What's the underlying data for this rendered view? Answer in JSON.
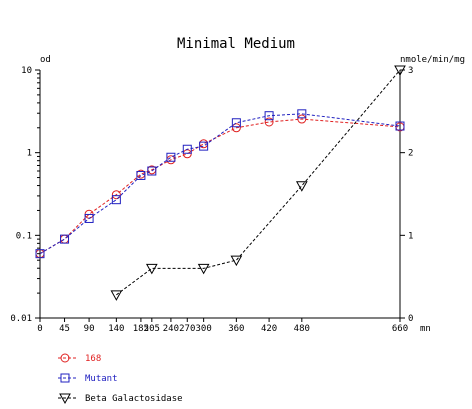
{
  "chart_data": {
    "type": "line",
    "title": "Minimal Medium",
    "xlabel": "mn",
    "ylabel_left": "od",
    "ylabel_right": "nmole/min/mg",
    "x_ticks": [
      0,
      45,
      90,
      140,
      185,
      205,
      240,
      270,
      300,
      360,
      420,
      480,
      660
    ],
    "x_tick_labels": [
      "0",
      "45",
      "90",
      "140",
      "185",
      "205",
      "240",
      "270",
      "300",
      "360",
      "420",
      "480",
      "660"
    ],
    "xlim": [
      0,
      660
    ],
    "ylim_left": [
      0.01,
      10
    ],
    "yscale_left": "log",
    "y_left_ticks": [
      0.01,
      0.1,
      1,
      10
    ],
    "y_left_tick_labels": [
      "0.01",
      "0.1",
      "1",
      "10"
    ],
    "ylim_right": [
      0,
      3
    ],
    "y_right_ticks": [
      0,
      1,
      2,
      3
    ],
    "y_right_tick_labels": [
      "0",
      "1",
      "2",
      "3"
    ],
    "grid": false,
    "legend_position": "bottom-left",
    "series": [
      {
        "name": "168",
        "axis": "left",
        "color": "#e02020",
        "marker": "circle",
        "x": [
          0,
          45,
          90,
          140,
          185,
          205,
          240,
          270,
          300,
          360,
          420,
          480,
          660
        ],
        "y": [
          0.06,
          0.09,
          0.18,
          0.31,
          0.55,
          0.62,
          0.82,
          0.97,
          1.28,
          2.0,
          2.35,
          2.55,
          2.05
        ]
      },
      {
        "name": "Mutant",
        "axis": "left",
        "color": "#2020c0",
        "marker": "square",
        "x": [
          0,
          45,
          90,
          140,
          185,
          205,
          240,
          270,
          300,
          360,
          420,
          480,
          660
        ],
        "y": [
          0.06,
          0.09,
          0.16,
          0.27,
          0.53,
          0.6,
          0.88,
          1.1,
          1.2,
          2.3,
          2.8,
          2.95,
          2.1
        ]
      },
      {
        "name": "Beta Galactosidase",
        "axis": "right",
        "color": "#000000",
        "marker": "triangle-down",
        "x": [
          140,
          205,
          300,
          360,
          480,
          660
        ],
        "y": [
          0.28,
          0.6,
          0.6,
          0.7,
          1.6,
          3.0
        ]
      }
    ]
  }
}
